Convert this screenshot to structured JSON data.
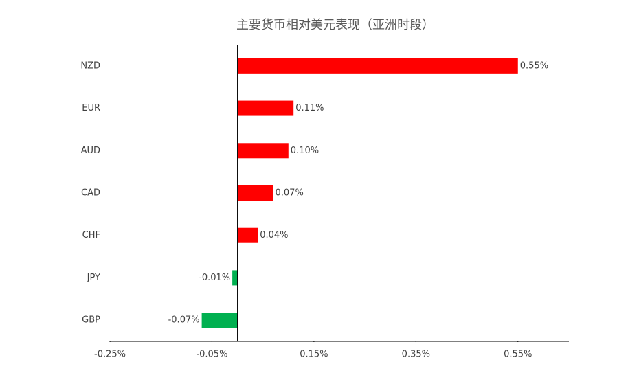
{
  "chart_data": {
    "type": "hbar",
    "title": "主要货币相对美元表现（亚洲时段）",
    "categories": [
      "NZD",
      "EUR",
      "AUD",
      "CAD",
      "CHF",
      "JPY",
      "GBP"
    ],
    "values": [
      0.55,
      0.11,
      0.1,
      0.07,
      0.04,
      -0.01,
      -0.07
    ],
    "value_labels": [
      "0.55%",
      "0.11%",
      "0.10%",
      "0.07%",
      "0.04%",
      "-0.01%",
      "-0.07%"
    ],
    "colors": [
      "#ff0000",
      "#ff0000",
      "#ff0000",
      "#ff0000",
      "#ff0000",
      "#00b050",
      "#00b050"
    ],
    "xlim": [
      -0.25,
      0.65
    ],
    "xticks": [
      {
        "value": -0.25,
        "label": "-0.25%"
      },
      {
        "value": -0.05,
        "label": "-0.05%"
      },
      {
        "value": 0.15,
        "label": "0.15%"
      },
      {
        "value": 0.35,
        "label": "0.35%"
      },
      {
        "value": 0.55,
        "label": "0.55%"
      }
    ],
    "grid": false
  }
}
